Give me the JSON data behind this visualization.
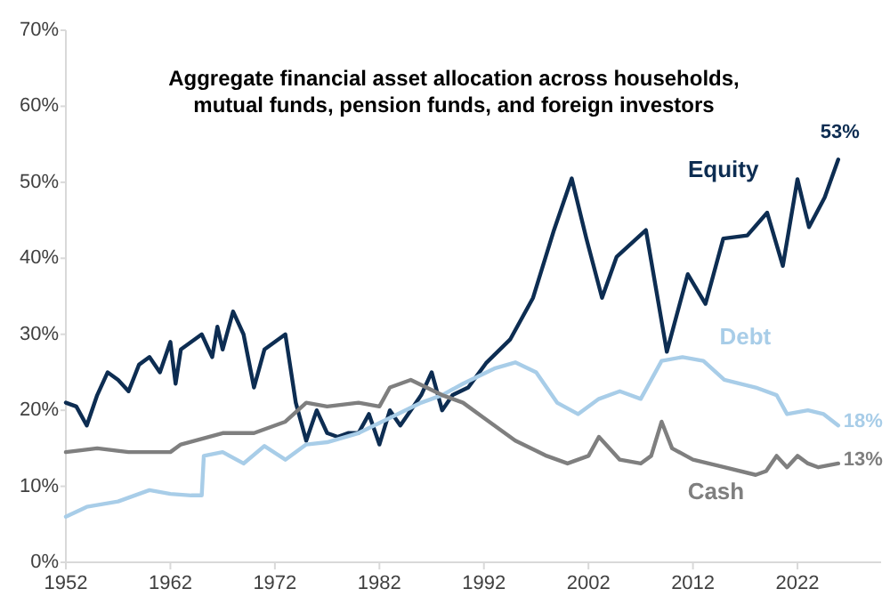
{
  "chart_data": {
    "type": "line",
    "title": "Aggregate financial asset allocation across households,\nmutual funds, pension funds, and foreign investors",
    "xlim": [
      1952,
      2030
    ],
    "xticks": [
      1952,
      1962,
      1972,
      1982,
      1992,
      2002,
      2012,
      2022
    ],
    "ylim": [
      0,
      70
    ],
    "yticks": [
      {
        "value": 0,
        "label": "0%"
      },
      {
        "value": 10,
        "label": "10%"
      },
      {
        "value": 20,
        "label": "20%"
      },
      {
        "value": 30,
        "label": "30%"
      },
      {
        "value": 40,
        "label": "40%"
      },
      {
        "value": 50,
        "label": "50%"
      },
      {
        "value": 60,
        "label": "60%"
      },
      {
        "value": 70,
        "label": "70%"
      }
    ],
    "marker": "none",
    "line_style": "solid",
    "series": [
      {
        "name": "Equity",
        "color": "#0d2d52",
        "x": [
          1952,
          1953,
          1954,
          1955,
          1956,
          1957,
          1958,
          1959,
          1960,
          1961,
          1962,
          1962.5,
          1963,
          1964,
          1965,
          1966,
          1966.5,
          1967,
          1968,
          1969,
          1970,
          1971,
          1972,
          1973,
          1974,
          1975,
          1976,
          1977,
          1978,
          1979,
          1980,
          1981,
          1982,
          1983,
          1984,
          1985,
          1986,
          1987,
          1988,
          1989,
          1990.5,
          1992.2,
          1994.5,
          1996.7,
          1998.7,
          2000.4,
          2001.8,
          2003.3,
          2004.7,
          2007.5,
          2009.5,
          2011.5,
          2013.2,
          2014.9,
          2017.2,
          2019.1,
          2020.6,
          2022,
          2023.1,
          2024.6,
          2025.9
        ],
        "values": [
          21,
          20.5,
          18,
          22,
          25,
          24,
          22.5,
          26,
          27,
          25,
          29,
          23.5,
          28,
          29,
          30,
          27,
          31,
          28,
          33,
          30,
          23,
          28,
          29,
          30,
          21,
          16,
          20,
          17,
          16.5,
          17,
          17,
          19.5,
          15.5,
          20,
          18,
          20,
          22,
          25,
          20,
          22,
          23,
          26.2,
          29.3,
          34.8,
          43.7,
          50.5,
          42.6,
          34.8,
          40.2,
          43.7,
          27.7,
          37.9,
          34,
          42.6,
          43,
          46,
          39,
          50.4,
          44.1,
          48,
          53
        ]
      },
      {
        "name": "Debt",
        "color": "#a8cde8",
        "x": [
          1952,
          1954,
          1957,
          1960,
          1962,
          1964,
          1965,
          1965.2,
          1967,
          1969,
          1971,
          1973,
          1975,
          1977,
          1980,
          1983,
          1986,
          1988,
          1990,
          1993,
          1995,
          1997,
          1999,
          2001,
          2003,
          2005,
          2007,
          2009,
          2011,
          2013,
          2015,
          2018,
          2020,
          2021,
          2023,
          2024.5,
          2025.9
        ],
        "values": [
          6,
          7.3,
          8,
          9.5,
          9,
          8.8,
          8.8,
          14,
          14.5,
          13,
          15.3,
          13.5,
          15.5,
          15.8,
          17,
          19,
          21,
          22,
          23.5,
          25.5,
          26.3,
          25,
          21,
          19.5,
          21.5,
          22.5,
          21.5,
          26.5,
          27,
          26.5,
          24,
          23,
          22,
          19.5,
          20,
          19.5,
          18
        ]
      },
      {
        "name": "Cash",
        "color": "#7f7f7f",
        "x": [
          1952,
          1955,
          1958,
          1962,
          1963,
          1967,
          1970,
          1973,
          1975,
          1977,
          1980,
          1982,
          1983,
          1985,
          1988,
          1990,
          1992,
          1995,
          1998,
          2000,
          2002,
          2003,
          2005,
          2007,
          2008,
          2009,
          2010,
          2012,
          2015,
          2018,
          2019,
          2020,
          2021,
          2022,
          2023,
          2024,
          2025.9
        ],
        "values": [
          14.5,
          15,
          14.5,
          14.5,
          15.5,
          17,
          17,
          18.5,
          21,
          20.5,
          21,
          20.5,
          23,
          24,
          22,
          21,
          19,
          16,
          14,
          13,
          14,
          16.5,
          13.5,
          13,
          14,
          18.5,
          15,
          13.5,
          12.5,
          11.5,
          12,
          14,
          12.5,
          14,
          13,
          12.5,
          13
        ]
      }
    ],
    "annotations": [
      "53%",
      "18%",
      "13%"
    ]
  }
}
